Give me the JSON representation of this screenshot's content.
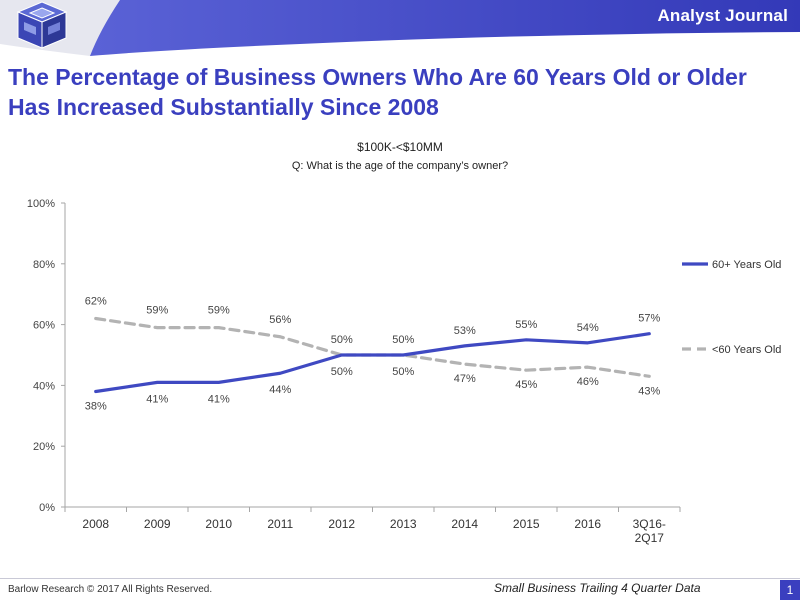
{
  "header": {
    "journal": "Analyst Journal",
    "title": "The Percentage of Business Owners Who Are 60 Years Old or Older Has Increased Substantially Since 2008",
    "subtitle": "$100K-<$10MM",
    "question": "Q: What is the age of the company’s owner?"
  },
  "footer": {
    "left": "Barlow Research © 2017 All Rights Reserved.",
    "right": "Small Business Trailing 4 Quarter Data",
    "page": "1"
  },
  "colors": {
    "brand": "#3a3fbf",
    "series_older": "#3f49c2",
    "series_younger": "#b3b3b3"
  },
  "chart_data": {
    "type": "line",
    "x": [
      "2008",
      "2009",
      "2010",
      "2011",
      "2012",
      "2013",
      "2014",
      "2015",
      "2016",
      "3Q16-2Q17"
    ],
    "ylim": [
      0,
      100
    ],
    "yticks": [
      "0%",
      "20%",
      "40%",
      "60%",
      "80%",
      "100%"
    ],
    "grid": false,
    "legend": "right",
    "series": [
      {
        "name": "60+ Years Old",
        "style": "solid",
        "color": "#3f49c2",
        "values": [
          38,
          41,
          41,
          44,
          50,
          50,
          53,
          55,
          54,
          57
        ],
        "labels": [
          "38%",
          "41%",
          "41%",
          "44%",
          "50%",
          "50%",
          "53%",
          "55%",
          "54%",
          "57%"
        ]
      },
      {
        "name": "<60 Years Old",
        "style": "dashed",
        "color": "#b3b3b3",
        "values": [
          62,
          59,
          59,
          56,
          50,
          50,
          47,
          45,
          46,
          43
        ],
        "labels": [
          "62%",
          "59%",
          "59%",
          "56%",
          "50%",
          "50%",
          "47%",
          "45%",
          "46%",
          "43%"
        ]
      }
    ]
  }
}
